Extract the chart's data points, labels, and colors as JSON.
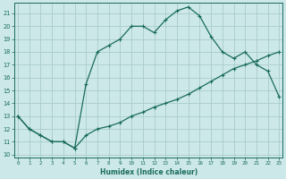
{
  "xlabel": "Humidex (Indice chaleur)",
  "bg_color": "#cce8e8",
  "grid_color": "#aacccc",
  "line_color": "#1a6b5e",
  "x_ticks": [
    0,
    1,
    2,
    3,
    4,
    5,
    6,
    7,
    8,
    9,
    10,
    11,
    12,
    13,
    14,
    15,
    16,
    17,
    18,
    19,
    20,
    21,
    22,
    23
  ],
  "y_ticks": [
    10,
    11,
    12,
    13,
    14,
    15,
    16,
    17,
    18,
    19,
    20,
    21
  ],
  "ylim": [
    9.8,
    21.8
  ],
  "xlim": [
    -0.3,
    23.3
  ],
  "series1_x": [
    0,
    1,
    2,
    3,
    4,
    5,
    6,
    7,
    8,
    9,
    10,
    11,
    12,
    13,
    14,
    15,
    16,
    17,
    18,
    19,
    20,
    21,
    22,
    23
  ],
  "series1_y": [
    13.0,
    12.0,
    11.5,
    11.0,
    11.0,
    10.5,
    11.5,
    12.0,
    12.2,
    12.5,
    13.0,
    13.3,
    13.7,
    14.0,
    14.3,
    14.7,
    15.2,
    15.7,
    16.2,
    16.7,
    17.0,
    17.3,
    17.7,
    18.0
  ],
  "series2_x": [
    0,
    1,
    2,
    3,
    4,
    5,
    6,
    7,
    8,
    9,
    10,
    11,
    12,
    13,
    14,
    15,
    16,
    17,
    18,
    19,
    20,
    21,
    22,
    23
  ],
  "series2_y": [
    13.0,
    12.0,
    11.5,
    11.0,
    11.0,
    10.5,
    15.5,
    18.0,
    18.5,
    19.0,
    20.0,
    20.0,
    19.5,
    20.5,
    21.2,
    21.5,
    20.8,
    19.2,
    18.0,
    17.5,
    18.0,
    17.0,
    16.5,
    14.5
  ]
}
